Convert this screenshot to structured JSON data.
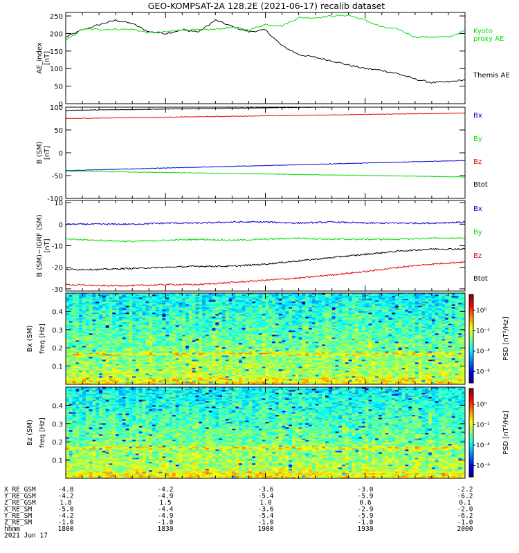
{
  "title": "GEO-KOMPSAT-2A 128.2E (2021-06-17) recalib dataset",
  "colors": {
    "black": "#000000",
    "red": "#e8000b",
    "green": "#00dd00",
    "blue": "#0000d0"
  },
  "x_axis": {
    "start": "18:00",
    "end": "20:00",
    "ticks": [
      "1800",
      "1830",
      "1900",
      "1930",
      "2000"
    ]
  },
  "chart_data": [
    {
      "type": "line",
      "ylabel": "AE_index\n[nT]",
      "ylim": [
        0,
        260
      ],
      "yticks": [
        "0",
        "50",
        "100",
        "150",
        "200",
        "250"
      ],
      "x_minutes": [
        0,
        5,
        10,
        15,
        20,
        25,
        30,
        35,
        40,
        45,
        50,
        55,
        60,
        65,
        70,
        75,
        80,
        85,
        90,
        95,
        100,
        105,
        110,
        115,
        120
      ],
      "series": [
        {
          "name": "Themis AE",
          "label_lines": [
            "Themis AE"
          ],
          "color": "#000000",
          "values": [
            190,
            210,
            225,
            238,
            228,
            205,
            200,
            210,
            205,
            238,
            220,
            205,
            210,
            165,
            140,
            132,
            122,
            110,
            100,
            95,
            85,
            70,
            60,
            62,
            68
          ]
        },
        {
          "name": "Kyoto proxy AE",
          "label_lines": [
            "Kyoto",
            "proxy AE"
          ],
          "color": "#00dd00",
          "values": [
            180,
            212,
            212,
            212,
            212,
            202,
            204,
            212,
            210,
            212,
            218,
            210,
            226,
            222,
            245,
            245,
            250,
            252,
            238,
            218,
            212,
            190,
            190,
            190,
            208
          ]
        }
      ]
    },
    {
      "type": "line",
      "ylabel": "B (SM)\n[nT]",
      "ylim": [
        -100,
        100
      ],
      "yticks": [
        "-100",
        "-50",
        "0",
        "50",
        "100"
      ],
      "x_minutes": [
        0,
        120
      ],
      "series": [
        {
          "name": "Bx",
          "color": "#0000d0",
          "values": [
            -39,
            -17
          ]
        },
        {
          "name": "By",
          "color": "#00dd00",
          "values": [
            -40,
            -53
          ]
        },
        {
          "name": "Bz",
          "color": "#e8000b",
          "values": [
            75,
            87
          ]
        },
        {
          "name": "Btot",
          "color": "#000000",
          "values": [
            93,
            104
          ]
        }
      ]
    },
    {
      "type": "line",
      "ylabel": "B (SM)−IGRF (SM)\n[nT]",
      "ylim": [
        -31,
        11
      ],
      "yticks": [
        "-30",
        "-20",
        "-10",
        "0",
        "10"
      ],
      "x_minutes": [
        0,
        10,
        20,
        30,
        40,
        50,
        60,
        70,
        80,
        90,
        100,
        110,
        120
      ],
      "series": [
        {
          "name": "Bx",
          "color": "#0000d0",
          "values": [
            0,
            0,
            0,
            0.5,
            0.5,
            1,
            1,
            0.5,
            1,
            0.5,
            0.5,
            0.5,
            1
          ]
        },
        {
          "name": "By",
          "color": "#00dd00",
          "values": [
            -7,
            -7.5,
            -8,
            -7.5,
            -7,
            -7.5,
            -7,
            -6.5,
            -7,
            -7,
            -7,
            -6.5,
            -6.5
          ]
        },
        {
          "name": "Bz",
          "color": "#e8000b",
          "values": [
            -28,
            -28.5,
            -28.5,
            -28,
            -28,
            -27,
            -26,
            -25,
            -23.5,
            -22,
            -20,
            -18.5,
            -17.5
          ]
        },
        {
          "name": "Btot",
          "color": "#000000",
          "values": [
            -21,
            -21,
            -20.5,
            -20,
            -19.5,
            -19.5,
            -18.5,
            -17,
            -15.5,
            -14,
            -12.5,
            -11.5,
            -11.5
          ]
        }
      ]
    },
    {
      "type": "heatmap",
      "ylabel": "Bx (SM)",
      "sublabel": "freq [Hz]",
      "ylim": [
        0,
        0.5
      ],
      "yticks": [
        "0.1",
        "0.2",
        "0.3",
        "0.4"
      ],
      "colorbar": {
        "label": "PSD [nT²/Hz]",
        "ticks": [
          "10⁰",
          "10⁻²",
          "10⁻⁴",
          "10⁻⁶"
        ]
      }
    },
    {
      "type": "heatmap",
      "ylabel": "Bz (SM)",
      "sublabel": "freq [Hz]",
      "ylim": [
        0,
        0.5
      ],
      "yticks": [
        "0.1",
        "0.2",
        "0.3",
        "0.4"
      ],
      "colorbar": {
        "label": "PSD [nT²/Hz]",
        "ticks": [
          "10⁰",
          "10⁻²",
          "10⁻⁴",
          "10⁻⁶"
        ]
      }
    }
  ],
  "ephemeris": {
    "rows": [
      {
        "label": "X_RE_GSM",
        "values": [
          "-4.8",
          "-4.2",
          "-3.6",
          "-3.0",
          "-2.2"
        ]
      },
      {
        "label": "Y_RE_GSM",
        "values": [
          "-4.2",
          "-4.9",
          "-5.4",
          "-5.9",
          "-6.2"
        ]
      },
      {
        "label": "Z_RE_GSM",
        "values": [
          "1.8",
          "1.5",
          "1.0",
          "0.6",
          "0.1"
        ]
      },
      {
        "label": "X_RE_SM",
        "values": [
          "-5.0",
          "-4.4",
          "-3.6",
          "-2.9",
          "-2.0"
        ]
      },
      {
        "label": "Y_RE_SM",
        "values": [
          "-4.2",
          "-4.9",
          "-5.4",
          "-5.9",
          "-6.2"
        ]
      },
      {
        "label": "Z_RE_SM",
        "values": [
          "-1.0",
          "-1.0",
          "-1.0",
          "-1.0",
          "-1.0"
        ]
      },
      {
        "label": "hhmm",
        "values": [
          "1800",
          "1830",
          "1900",
          "1930",
          "2000"
        ]
      }
    ],
    "date": "2021 Jun 17"
  }
}
